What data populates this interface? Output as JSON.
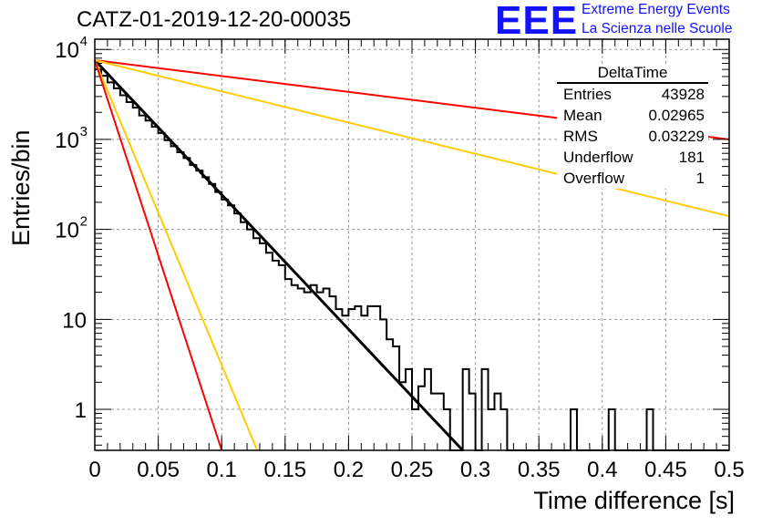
{
  "header": {
    "title": "CATZ-01-2019-12-20-00035",
    "logo_text": "EEE",
    "logo_line1": "Extreme Energy Events",
    "logo_line2": "La Scienza nelle Scuole",
    "logo_color": "#1212ff"
  },
  "stats_box": {
    "title": "DeltaTime",
    "rows": [
      {
        "label": "Entries",
        "value": "43928"
      },
      {
        "label": "Mean",
        "value": "0.02965"
      },
      {
        "label": "RMS",
        "value": "0.03229"
      },
      {
        "label": "Underflow",
        "value": "181"
      },
      {
        "label": "Overflow",
        "value": "1"
      }
    ]
  },
  "chart_data": {
    "type": "line",
    "title": "CATZ-01-2019-12-20-00035",
    "xlabel": "Time difference [s]",
    "ylabel": "Entries/bin",
    "xlim": [
      0,
      0.5
    ],
    "ylim": [
      0.35,
      13000
    ],
    "yscale": "log",
    "grid": true,
    "x_ticks": [
      "0",
      "0.05",
      "0.1",
      "0.15",
      "0.2",
      "0.25",
      "0.3",
      "0.35",
      "0.4",
      "0.45",
      "0.5"
    ],
    "x_tick_values": [
      0,
      0.05,
      0.1,
      0.15,
      0.2,
      0.25,
      0.3,
      0.35,
      0.4,
      0.45,
      0.5
    ],
    "y_ticks": [
      {
        "value": 1,
        "label": "1"
      },
      {
        "value": 10,
        "label": "10"
      },
      {
        "value": 100,
        "label": "10",
        "exp": "2"
      },
      {
        "value": 1000,
        "label": "10",
        "exp": "3"
      },
      {
        "value": 10000,
        "label": "10",
        "exp": "4"
      }
    ],
    "histogram": {
      "bin_width": 0.005,
      "color": "#000000",
      "values": [
        6000,
        5100,
        4300,
        3700,
        3100,
        2600,
        2250,
        1850,
        1620,
        1380,
        1180,
        980,
        840,
        720,
        620,
        520,
        450,
        380,
        320,
        260,
        215,
        185,
        150,
        120,
        100,
        80,
        70,
        55,
        45,
        40,
        28,
        24,
        22,
        20,
        24,
        20,
        22,
        18,
        13,
        11,
        13,
        14,
        11,
        14,
        14,
        10,
        6,
        5,
        2,
        2.8,
        1,
        1.8,
        2.8,
        1.5,
        1.5,
        1,
        0,
        0,
        2.8,
        1.5,
        0.3,
        2.8,
        1,
        1.5,
        1,
        0.3,
        0.3,
        0,
        0.3,
        0,
        0.3,
        0,
        0,
        0.3,
        0,
        1,
        0,
        0,
        0,
        0,
        0,
        1,
        0,
        0,
        0,
        0,
        0,
        1,
        0,
        0,
        0,
        0,
        0,
        0,
        0,
        0,
        0,
        0,
        0,
        0
      ],
      "note_zero_bins_drawn_at_axis": true
    },
    "series": [
      {
        "name": "",
        "kind": "fit",
        "color": "#000000",
        "x": [
          0,
          0.29
        ],
        "y": [
          7600,
          0.35
        ]
      },
      {
        "name": "",
        "kind": "exp",
        "color": "#ff0000",
        "x": [
          0,
          0.5
        ],
        "y": [
          7600,
          1000
        ]
      },
      {
        "name": "",
        "kind": "exp",
        "color": "#ffcc00",
        "x": [
          0,
          0.5
        ],
        "y": [
          7600,
          140
        ]
      },
      {
        "name": "",
        "kind": "exp",
        "color": "#ffcc00",
        "x": [
          0,
          0.128
        ],
        "y": [
          7600,
          0.35
        ]
      },
      {
        "name": "",
        "kind": "exp",
        "color": "#ff0000",
        "x": [
          0,
          0.1
        ],
        "y": [
          7600,
          0.35
        ]
      }
    ]
  }
}
